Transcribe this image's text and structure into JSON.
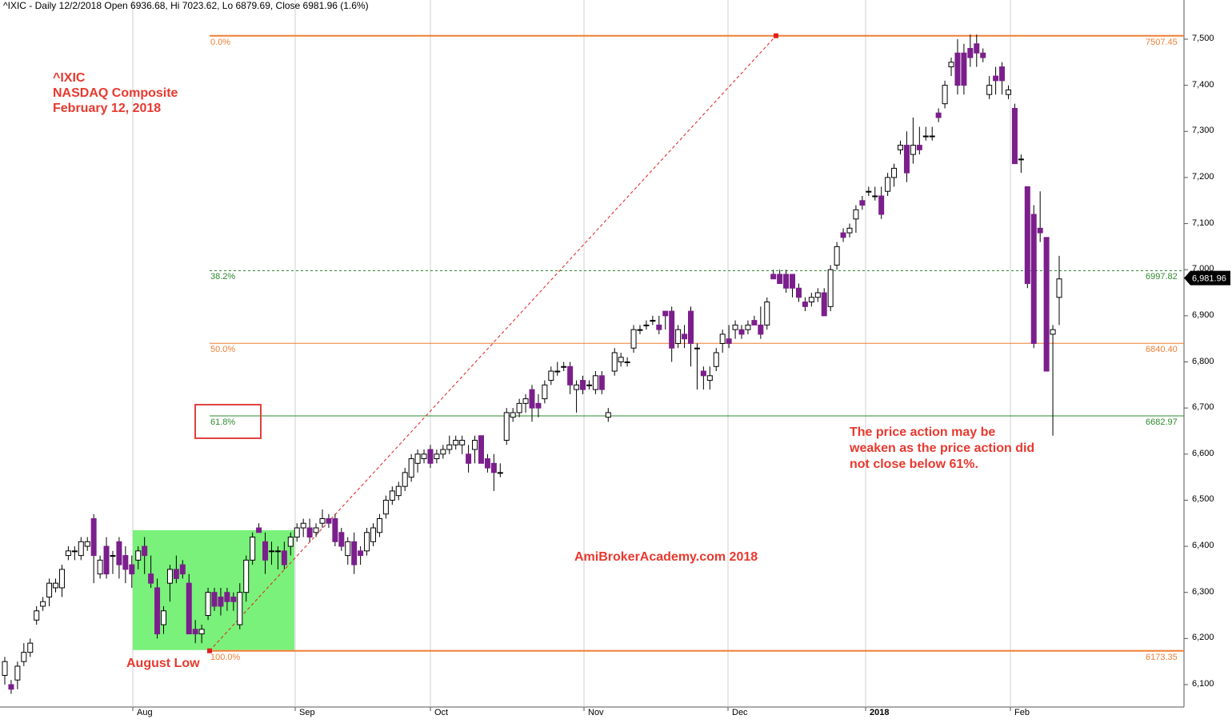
{
  "header": {
    "text": "^IXIC - Daily 12/2/2018 Open 6936.68, Hi 7023.62, Lo 6879.69, Close 6981.96 (1.6%)"
  },
  "title_block": {
    "line1": "^IXIC",
    "line2": "NASDAQ Composite",
    "line3": "February 12, 2018"
  },
  "annotations": {
    "august_low": "August Low",
    "note_line1": "The price action may be",
    "note_line2": "weaken as the price action did",
    "note_line3": "not close below 61%.",
    "watermark": "AmiBrokerAcademy.com  2018"
  },
  "colors": {
    "bear": "#7b1f8c",
    "bull": "#ffffff",
    "fib_orange": "#f07e35",
    "fib_green": "#2e8b2e",
    "highlight": "#6cf06c",
    "annotation": "#e8392f"
  },
  "chart_data": {
    "type": "candlestick",
    "symbol": "^IXIC",
    "ylim": [
      6080,
      7540
    ],
    "y_ticks": [
      "6,100",
      "6,200",
      "6,300",
      "6,400",
      "6,500",
      "6,600",
      "6,700",
      "6,800",
      "6,900",
      "7,000",
      "7,100",
      "7,200",
      "7,300",
      "7,400",
      "7,500"
    ],
    "x_ticks": [
      "Aug",
      "Sep",
      "Oct",
      "Nov",
      "Dec",
      "2018",
      "Feb"
    ],
    "last_price": "6,981.96",
    "fib_levels": [
      {
        "pct": "0.0%",
        "value": "7507.45",
        "price": 7507.45,
        "color": "orange",
        "style": "solid"
      },
      {
        "pct": "38.2%",
        "value": "6997.82",
        "price": 6997.82,
        "color": "green",
        "style": "dashed"
      },
      {
        "pct": "50.0%",
        "value": "6840.40",
        "price": 6840.4,
        "color": "orange",
        "style": "solid"
      },
      {
        "pct": "61.8%",
        "value": "6682.97",
        "price": 6682.97,
        "color": "green",
        "style": "solid"
      },
      {
        "pct": "100.0%",
        "value": "6173.35",
        "price": 6173.35,
        "color": "orange",
        "style": "solid"
      }
    ],
    "candles": [
      [
        6120,
        6160,
        6100,
        6150
      ],
      [
        6100,
        6110,
        6080,
        6090
      ],
      [
        6110,
        6150,
        6090,
        6140
      ],
      [
        6150,
        6190,
        6140,
        6170
      ],
      [
        6170,
        6200,
        6160,
        6190
      ],
      [
        6240,
        6270,
        6230,
        6260
      ],
      [
        6270,
        6290,
        6260,
        6280
      ],
      [
        6290,
        6330,
        6270,
        6320
      ],
      [
        6310,
        6330,
        6300,
        6320
      ],
      [
        6310,
        6360,
        6290,
        6350
      ],
      [
        6380,
        6400,
        6370,
        6390
      ],
      [
        6390,
        6400,
        6370,
        6390
      ],
      [
        6380,
        6420,
        6370,
        6410
      ],
      [
        6400,
        6420,
        6390,
        6410
      ],
      [
        6460,
        6470,
        6320,
        6380
      ],
      [
        6340,
        6380,
        6330,
        6370
      ],
      [
        6400,
        6420,
        6330,
        6340
      ],
      [
        6380,
        6390,
        6340,
        6380
      ],
      [
        6410,
        6420,
        6330,
        6360
      ],
      [
        6380,
        6400,
        6320,
        6350
      ],
      [
        6360,
        6380,
        6310,
        6340
      ],
      [
        6370,
        6400,
        6350,
        6390
      ],
      [
        6400,
        6420,
        6340,
        6380
      ],
      [
        6340,
        6380,
        6310,
        6320
      ],
      [
        6310,
        6330,
        6200,
        6210
      ],
      [
        6230,
        6270,
        6210,
        6260
      ],
      [
        6320,
        6360,
        6280,
        6350
      ],
      [
        6350,
        6380,
        6320,
        6330
      ],
      [
        6360,
        6370,
        6330,
        6340
      ],
      [
        6320,
        6340,
        6210,
        6210
      ],
      [
        6220,
        6240,
        6190,
        6210
      ],
      [
        6210,
        6230,
        6190,
        6220
      ],
      [
        6250,
        6310,
        6240,
        6300
      ],
      [
        6300,
        6310,
        6260,
        6270
      ],
      [
        6290,
        6310,
        6250,
        6270
      ],
      [
        6300,
        6310,
        6260,
        6280
      ],
      [
        6290,
        6300,
        6260,
        6280
      ],
      [
        6230,
        6320,
        6220,
        6300
      ],
      [
        6300,
        6380,
        6280,
        6370
      ],
      [
        6370,
        6430,
        6360,
        6420
      ],
      [
        6440,
        6450,
        6430,
        6430
      ],
      [
        6410,
        6430,
        6340,
        6370
      ],
      [
        6390,
        6410,
        6360,
        6390
      ],
      [
        6390,
        6400,
        6350,
        6390
      ],
      [
        6390,
        6410,
        6350,
        6360
      ],
      [
        6400,
        6430,
        6380,
        6420
      ],
      [
        6420,
        6450,
        6410,
        6440
      ],
      [
        6440,
        6460,
        6420,
        6450
      ],
      [
        6440,
        6460,
        6410,
        6420
      ],
      [
        6430,
        6450,
        6420,
        6440
      ],
      [
        6450,
        6480,
        6440,
        6460
      ],
      [
        6460,
        6470,
        6440,
        6450
      ],
      [
        6460,
        6470,
        6400,
        6410
      ],
      [
        6430,
        6440,
        6390,
        6400
      ],
      [
        6380,
        6420,
        6360,
        6410
      ],
      [
        6410,
        6430,
        6340,
        6360
      ],
      [
        6390,
        6400,
        6360,
        6380
      ],
      [
        6390,
        6440,
        6380,
        6430
      ],
      [
        6410,
        6450,
        6400,
        6440
      ],
      [
        6430,
        6470,
        6420,
        6460
      ],
      [
        6470,
        6510,
        6460,
        6500
      ],
      [
        6500,
        6530,
        6490,
        6520
      ],
      [
        6510,
        6540,
        6500,
        6530
      ],
      [
        6530,
        6570,
        6520,
        6560
      ],
      [
        6550,
        6600,
        6540,
        6590
      ],
      [
        6580,
        6610,
        6560,
        6600
      ],
      [
        6590,
        6610,
        6580,
        6600
      ],
      [
        6610,
        6620,
        6570,
        6580
      ],
      [
        6590,
        6610,
        6580,
        6600
      ],
      [
        6600,
        6620,
        6590,
        6610
      ],
      [
        6610,
        6640,
        6600,
        6620
      ],
      [
        6620,
        6640,
        6610,
        6630
      ],
      [
        6620,
        6640,
        6600,
        6630
      ],
      [
        6600,
        6620,
        6560,
        6580
      ],
      [
        6610,
        6640,
        6580,
        6630
      ],
      [
        6640,
        6640,
        6580,
        6580
      ],
      [
        6590,
        6600,
        6560,
        6570
      ],
      [
        6580,
        6600,
        6520,
        6560
      ],
      [
        6560,
        6580,
        6550,
        6560
      ],
      [
        6630,
        6700,
        6620,
        6690
      ],
      [
        6680,
        6700,
        6670,
        6690
      ],
      [
        6690,
        6720,
        6680,
        6710
      ],
      [
        6710,
        6730,
        6690,
        6720
      ],
      [
        6740,
        6750,
        6670,
        6700
      ],
      [
        6710,
        6730,
        6680,
        6700
      ],
      [
        6720,
        6760,
        6710,
        6750
      ],
      [
        6760,
        6790,
        6750,
        6780
      ],
      [
        6780,
        6800,
        6770,
        6780
      ],
      [
        6790,
        6800,
        6780,
        6790
      ],
      [
        6790,
        6800,
        6730,
        6750
      ],
      [
        6740,
        6760,
        6690,
        6750
      ],
      [
        6760,
        6770,
        6730,
        6740
      ],
      [
        6750,
        6760,
        6740,
        6750
      ],
      [
        6740,
        6780,
        6730,
        6770
      ],
      [
        6770,
        6780,
        6730,
        6740
      ],
      [
        6680,
        6700,
        6670,
        6690
      ],
      [
        6780,
        6830,
        6770,
        6820
      ],
      [
        6800,
        6820,
        6790,
        6810
      ],
      [
        6800,
        6810,
        6790,
        6800
      ],
      [
        6830,
        6880,
        6820,
        6870
      ],
      [
        6870,
        6880,
        6860,
        6870
      ],
      [
        6880,
        6890,
        6870,
        6880
      ],
      [
        6890,
        6900,
        6880,
        6890
      ],
      [
        6880,
        6900,
        6860,
        6870
      ],
      [
        6910,
        6910,
        6870,
        6900
      ],
      [
        6910,
        6920,
        6800,
        6830
      ],
      [
        6840,
        6880,
        6830,
        6870
      ],
      [
        6860,
        6880,
        6830,
        6850
      ],
      [
        6910,
        6920,
        6790,
        6840
      ],
      [
        6830,
        6840,
        6740,
        6830
      ],
      [
        6780,
        6790,
        6740,
        6770
      ],
      [
        6760,
        6790,
        6740,
        6770
      ],
      [
        6790,
        6830,
        6780,
        6820
      ],
      [
        6840,
        6870,
        6820,
        6860
      ],
      [
        6850,
        6880,
        6830,
        6840
      ],
      [
        6870,
        6890,
        6850,
        6880
      ],
      [
        6870,
        6880,
        6850,
        6860
      ],
      [
        6870,
        6890,
        6860,
        6880
      ],
      [
        6890,
        6900,
        6880,
        6880
      ],
      [
        6880,
        6920,
        6850,
        6860
      ],
      [
        6880,
        6940,
        6870,
        6930
      ],
      [
        6990,
        7000,
        6980,
        6980
      ],
      [
        6990,
        7000,
        6970,
        6970
      ],
      [
        6990,
        7000,
        6950,
        6960
      ],
      [
        6990,
        6990,
        6940,
        6960
      ],
      [
        6960,
        6970,
        6930,
        6940
      ],
      [
        6930,
        6940,
        6910,
        6920
      ],
      [
        6930,
        6950,
        6920,
        6940
      ],
      [
        6940,
        6960,
        6930,
        6950
      ],
      [
        6950,
        6960,
        6900,
        6900
      ],
      [
        6920,
        7010,
        6910,
        7000
      ],
      [
        7010,
        7060,
        7000,
        7050
      ],
      [
        7080,
        7090,
        7060,
        7070
      ],
      [
        7080,
        7100,
        7070,
        7090
      ],
      [
        7110,
        7140,
        7080,
        7130
      ],
      [
        7150,
        7160,
        7130,
        7140
      ],
      [
        7170,
        7180,
        7160,
        7170
      ],
      [
        7160,
        7180,
        7150,
        7160
      ],
      [
        7160,
        7180,
        7110,
        7120
      ],
      [
        7170,
        7210,
        7160,
        7200
      ],
      [
        7200,
        7230,
        7180,
        7220
      ],
      [
        7260,
        7280,
        7250,
        7270
      ],
      [
        7270,
        7300,
        7190,
        7210
      ],
      [
        7250,
        7330,
        7230,
        7270
      ],
      [
        7270,
        7310,
        7250,
        7260
      ],
      [
        7290,
        7310,
        7280,
        7290
      ],
      [
        7290,
        7310,
        7280,
        7290
      ],
      [
        7340,
        7350,
        7320,
        7330
      ],
      [
        7360,
        7410,
        7350,
        7400
      ],
      [
        7440,
        7460,
        7420,
        7450
      ],
      [
        7470,
        7500,
        7380,
        7400
      ],
      [
        7470,
        7490,
        7380,
        7400
      ],
      [
        7480,
        7510,
        7440,
        7460
      ],
      [
        7490,
        7510,
        7440,
        7470
      ],
      [
        7470,
        7480,
        7450,
        7460
      ],
      [
        7380,
        7420,
        7370,
        7400
      ],
      [
        7420,
        7440,
        7380,
        7410
      ],
      [
        7440,
        7450,
        7380,
        7410
      ],
      [
        7380,
        7400,
        7370,
        7390
      ],
      [
        7350,
        7360,
        7230,
        7230
      ],
      [
        7240,
        7250,
        7210,
        7240
      ],
      [
        7180,
        7180,
        6960,
        6970
      ],
      [
        7120,
        7140,
        6830,
        6840
      ],
      [
        7090,
        7170,
        7060,
        7080
      ],
      [
        7070,
        7070,
        6780,
        6780
      ],
      [
        6860,
        6880,
        6640,
        6870
      ],
      [
        6940,
        7030,
        6880,
        6980
      ]
    ]
  }
}
